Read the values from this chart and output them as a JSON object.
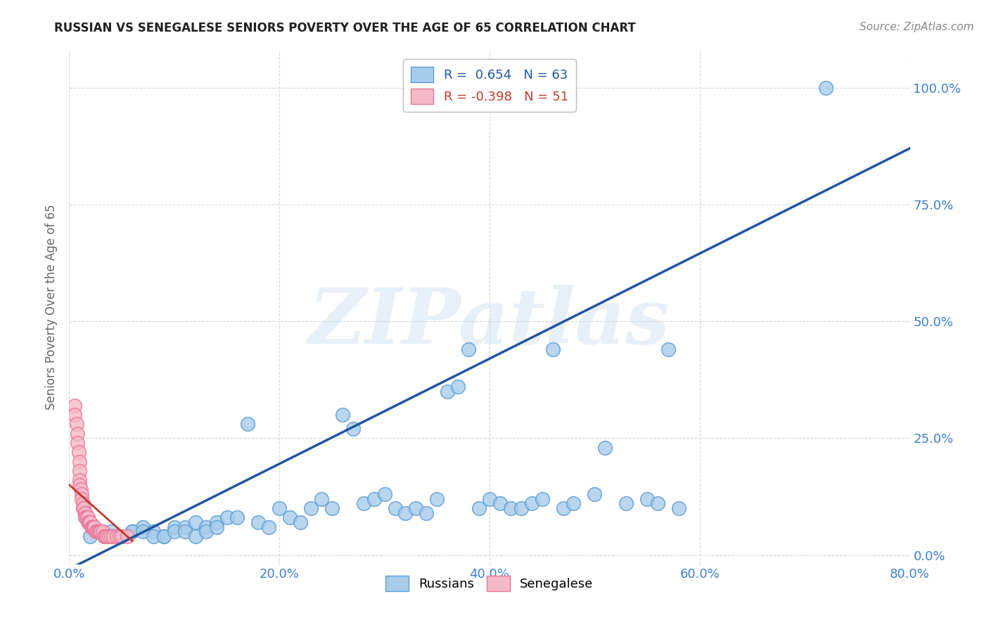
{
  "title": "RUSSIAN VS SENEGALESE SENIORS POVERTY OVER THE AGE OF 65 CORRELATION CHART",
  "source": "Source: ZipAtlas.com",
  "ylabel": "Seniors Poverty Over the Age of 65",
  "xlim": [
    0.0,
    0.8
  ],
  "ylim": [
    -0.02,
    1.08
  ],
  "yticks": [
    0.0,
    0.25,
    0.5,
    0.75,
    1.0
  ],
  "xticks": [
    0.0,
    0.2,
    0.4,
    0.6,
    0.8
  ],
  "watermark": "ZIPatlas",
  "russian_color": "#A8CCEA",
  "senegalese_color": "#F5B8C8",
  "russian_edge": "#5B9BD5",
  "senegalese_edge": "#E8789A",
  "trendline_russian_color": "#2155A0",
  "trendline_senegalese_color": "#C0392B",
  "R_russian": 0.654,
  "N_russian": 63,
  "R_senegalese": -0.398,
  "N_senegalese": 51,
  "background_color": "#FFFFFF",
  "grid_color": "#CCCCCC",
  "title_color": "#222222",
  "tick_label_color": "#3B7FCC",
  "ylabel_color": "#666666",
  "russian_x": [
    0.72,
    0.02,
    0.04,
    0.06,
    0.07,
    0.08,
    0.09,
    0.1,
    0.11,
    0.12,
    0.13,
    0.14,
    0.15,
    0.16,
    0.17,
    0.18,
    0.19,
    0.2,
    0.21,
    0.22,
    0.23,
    0.24,
    0.25,
    0.26,
    0.27,
    0.28,
    0.29,
    0.3,
    0.31,
    0.32,
    0.33,
    0.34,
    0.35,
    0.36,
    0.37,
    0.38,
    0.39,
    0.4,
    0.41,
    0.42,
    0.43,
    0.44,
    0.45,
    0.46,
    0.47,
    0.48,
    0.5,
    0.51,
    0.53,
    0.55,
    0.56,
    0.57,
    0.58,
    0.05,
    0.06,
    0.07,
    0.08,
    0.09,
    0.1,
    0.11,
    0.12,
    0.13,
    0.14
  ],
  "russian_y": [
    1.0,
    0.04,
    0.05,
    0.05,
    0.06,
    0.05,
    0.04,
    0.06,
    0.06,
    0.07,
    0.06,
    0.07,
    0.08,
    0.08,
    0.28,
    0.07,
    0.06,
    0.1,
    0.08,
    0.07,
    0.1,
    0.12,
    0.1,
    0.3,
    0.27,
    0.11,
    0.12,
    0.13,
    0.1,
    0.09,
    0.1,
    0.09,
    0.12,
    0.35,
    0.36,
    0.44,
    0.1,
    0.12,
    0.11,
    0.1,
    0.1,
    0.11,
    0.12,
    0.44,
    0.1,
    0.11,
    0.13,
    0.23,
    0.11,
    0.12,
    0.11,
    0.44,
    0.1,
    0.04,
    0.05,
    0.05,
    0.04,
    0.04,
    0.05,
    0.05,
    0.04,
    0.05,
    0.06
  ],
  "senegalese_x": [
    0.005,
    0.005,
    0.007,
    0.008,
    0.008,
    0.009,
    0.01,
    0.01,
    0.01,
    0.01,
    0.011,
    0.012,
    0.012,
    0.013,
    0.013,
    0.014,
    0.015,
    0.015,
    0.015,
    0.016,
    0.017,
    0.018,
    0.018,
    0.019,
    0.02,
    0.02,
    0.021,
    0.022,
    0.022,
    0.023,
    0.023,
    0.024,
    0.025,
    0.026,
    0.027,
    0.028,
    0.029,
    0.03,
    0.03,
    0.032,
    0.033,
    0.034,
    0.035,
    0.036,
    0.038,
    0.04,
    0.042,
    0.045,
    0.048,
    0.05,
    0.055
  ],
  "senegalese_y": [
    0.32,
    0.3,
    0.28,
    0.26,
    0.24,
    0.22,
    0.2,
    0.18,
    0.16,
    0.15,
    0.14,
    0.13,
    0.12,
    0.11,
    0.1,
    0.1,
    0.09,
    0.09,
    0.08,
    0.08,
    0.08,
    0.08,
    0.07,
    0.07,
    0.07,
    0.07,
    0.06,
    0.06,
    0.06,
    0.06,
    0.06,
    0.06,
    0.05,
    0.05,
    0.05,
    0.05,
    0.05,
    0.05,
    0.05,
    0.05,
    0.04,
    0.04,
    0.04,
    0.04,
    0.04,
    0.04,
    0.04,
    0.04,
    0.04,
    0.04,
    0.04
  ]
}
